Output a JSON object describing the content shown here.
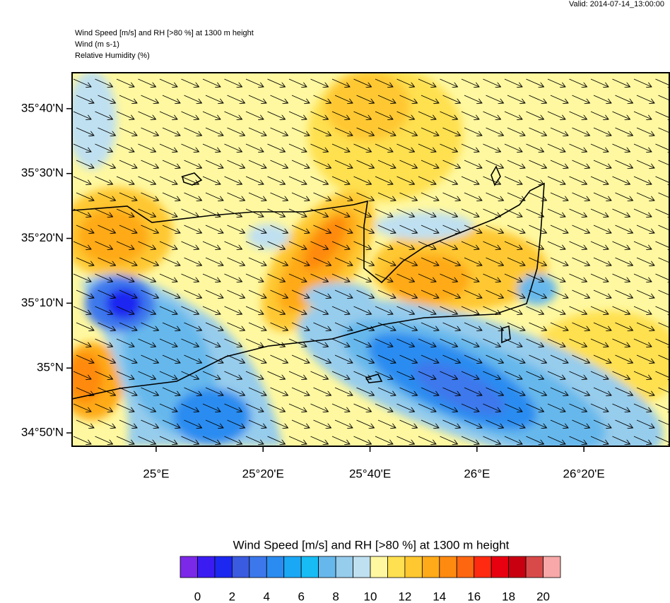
{
  "valid": "Valid: 2014-07-14_13:00:00",
  "header_lines": [
    "Wind Speed [m/s] and RH [>80 %] at 1300 m height",
    "Wind   (m s-1)",
    "Relative Humidity   (%)"
  ],
  "map": {
    "xlim": [
      24.738,
      26.5995
    ],
    "ylim": [
      34.799,
      35.759
    ],
    "xticks": [
      {
        "value": 25,
        "label": "25°E"
      },
      {
        "value": 25.3333,
        "label": "25°20'E"
      },
      {
        "value": 25.6667,
        "label": "25°40'E"
      },
      {
        "value": 26,
        "label": "26°E"
      },
      {
        "value": 26.3333,
        "label": "26°20'E"
      }
    ],
    "yticks": [
      {
        "value": 35.6667,
        "label": "35°40'N"
      },
      {
        "value": 35.5,
        "label": "35°30'N"
      },
      {
        "value": 35.3333,
        "label": "35°20'N"
      },
      {
        "value": 35.1667,
        "label": "35°10'N"
      },
      {
        "value": 35,
        "label": "35°N"
      },
      {
        "value": 34.8333,
        "label": "34°50'N"
      }
    ]
  },
  "colorbar": {
    "title": "Wind Speed [m/s] and RH [>80 %] at 1300 m height",
    "colors": [
      "#7b28e8",
      "#3a1cf2",
      "#1c28f0",
      "#3a5ae0",
      "#3c78ec",
      "#2a8cf0",
      "#1aa8f5",
      "#18bcf5",
      "#66b8ec",
      "#96ccec",
      "#bfe0f0",
      "#fff8a0",
      "#ffe050",
      "#ffc830",
      "#ffaa18",
      "#ff8a10",
      "#ff6610",
      "#ff2a10",
      "#e80010",
      "#c80010",
      "#d84a4a",
      "#f8a8a8"
    ],
    "ticks": [
      0,
      2,
      4,
      6,
      8,
      10,
      12,
      14,
      16,
      18,
      20
    ]
  }
}
